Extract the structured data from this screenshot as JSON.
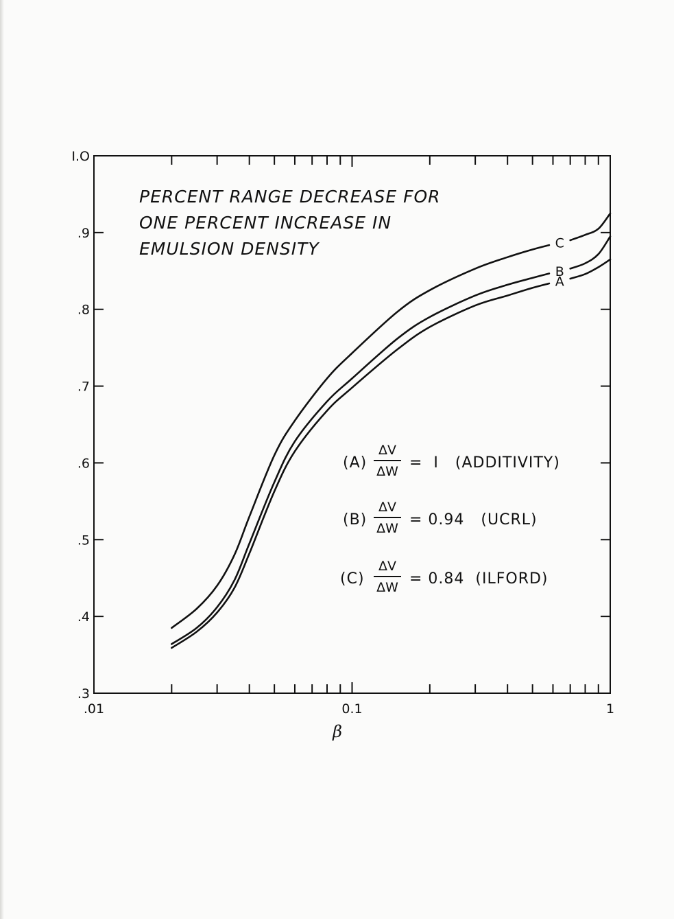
{
  "chart_data": {
    "type": "line",
    "title_lines": [
      "PERCENT RANGE DECREASE FOR",
      "ONE PERCENT INCREASE IN",
      "EMULSION DENSITY"
    ],
    "xlabel": "β",
    "ylabel": "",
    "x_scale": "log",
    "xlim": [
      0.01,
      1
    ],
    "ylim": [
      0.3,
      1.0
    ],
    "x_tick_labels": [
      {
        "value": 0.01,
        "label": ".01"
      },
      {
        "value": 0.1,
        "label": "0.1"
      },
      {
        "value": 1,
        "label": "1"
      }
    ],
    "y_tick_labels": [
      {
        "value": 0.3,
        "label": ".3"
      },
      {
        "value": 0.4,
        "label": ".4"
      },
      {
        "value": 0.5,
        "label": ".5"
      },
      {
        "value": 0.6,
        "label": ".6"
      },
      {
        "value": 0.7,
        "label": ".7"
      },
      {
        "value": 0.8,
        "label": ".8"
      },
      {
        "value": 0.9,
        "label": ".9"
      },
      {
        "value": 1.0,
        "label": "I.O"
      }
    ],
    "grid": false,
    "series": [
      {
        "name": "C",
        "x": [
          0.02,
          0.025,
          0.03,
          0.035,
          0.04,
          0.05,
          0.06,
          0.08,
          0.1,
          0.15,
          0.2,
          0.3,
          0.4,
          0.5,
          0.6,
          0.7,
          0.8,
          0.9,
          1.0
        ],
        "y": [
          0.385,
          0.41,
          0.44,
          0.48,
          0.53,
          0.61,
          0.655,
          0.71,
          0.743,
          0.797,
          0.825,
          0.853,
          0.868,
          0.878,
          0.885,
          0.89,
          0.897,
          0.905,
          0.925
        ]
      },
      {
        "name": "B",
        "x": [
          0.02,
          0.025,
          0.03,
          0.035,
          0.04,
          0.05,
          0.06,
          0.08,
          0.1,
          0.15,
          0.2,
          0.3,
          0.4,
          0.5,
          0.6,
          0.7,
          0.8,
          0.9,
          1.0
        ],
        "y": [
          0.364,
          0.385,
          0.412,
          0.447,
          0.495,
          0.575,
          0.628,
          0.68,
          0.71,
          0.762,
          0.79,
          0.818,
          0.832,
          0.841,
          0.848,
          0.853,
          0.86,
          0.872,
          0.895
        ]
      },
      {
        "name": "A",
        "x": [
          0.02,
          0.025,
          0.03,
          0.035,
          0.04,
          0.05,
          0.06,
          0.08,
          0.1,
          0.15,
          0.2,
          0.3,
          0.4,
          0.5,
          0.6,
          0.7,
          0.8,
          0.9,
          1.0
        ],
        "y": [
          0.359,
          0.38,
          0.405,
          0.437,
          0.482,
          0.563,
          0.615,
          0.668,
          0.698,
          0.748,
          0.777,
          0.805,
          0.818,
          0.828,
          0.835,
          0.84,
          0.846,
          0.855,
          0.865
        ]
      }
    ],
    "legend": [
      {
        "prefix": "(A)",
        "frac_num": "ΔV",
        "frac_den": "ΔW",
        "rest": "=  I   (ADDITIVITY)"
      },
      {
        "prefix": "(B)",
        "frac_num": "ΔV",
        "frac_den": "ΔW",
        "rest": "= 0.94   (UCRL)"
      },
      {
        "prefix": "(C)",
        "frac_num": "ΔV",
        "frac_den": "ΔW",
        "rest": "= 0.84  (ILFORD)"
      }
    ],
    "colors": {
      "ink": "#111111",
      "paper": "#fbfbfa"
    }
  }
}
